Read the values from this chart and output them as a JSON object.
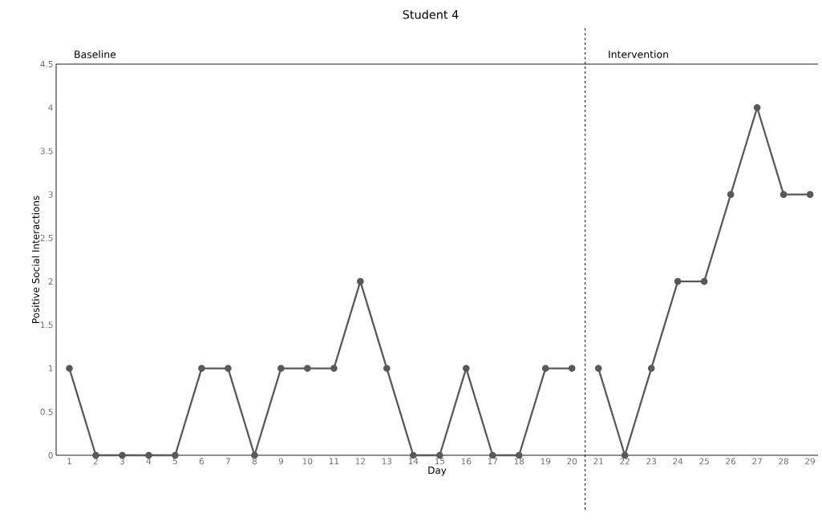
{
  "chart_data": {
    "type": "line",
    "title": "Student 4",
    "xlabel": "Day",
    "ylabel": "Positive Social Interactions",
    "series": [
      {
        "color": "#595959",
        "x": [
          1,
          2,
          3,
          4,
          5,
          6,
          7,
          8,
          9,
          10,
          11,
          12,
          13,
          14,
          15,
          16,
          17,
          18,
          19,
          20
        ],
        "values": [
          1,
          0,
          0,
          0,
          0,
          1,
          1,
          0,
          1,
          1,
          1,
          2,
          1,
          0,
          0,
          1,
          0,
          0,
          1,
          1
        ]
      },
      {
        "color": "#595959",
        "x": [
          21,
          22,
          23,
          24,
          25,
          26,
          27,
          28,
          29
        ],
        "values": [
          1,
          0,
          1,
          2,
          2,
          3,
          4,
          3,
          3
        ]
      }
    ],
    "xlim": [
      0.5,
      29.3
    ],
    "xticks": [
      1,
      2,
      3,
      4,
      5,
      6,
      7,
      8,
      9,
      10,
      11,
      12,
      13,
      14,
      15,
      16,
      17,
      18,
      19,
      20,
      21,
      22,
      23,
      24,
      25,
      26,
      27,
      28,
      29
    ],
    "ylim": [
      0,
      4.5
    ],
    "yticks": [
      0,
      0.5,
      1,
      1.5,
      2,
      2.5,
      3,
      3.5,
      4,
      4.5
    ],
    "ref_lines": [
      {
        "axis": "x",
        "value": 20.5,
        "color": "#000000",
        "line_style": "dashed"
      }
    ],
    "annotations": [
      "Baseline",
      "Intervention"
    ],
    "marker": "circle",
    "line_style": "solid",
    "grid": false
  }
}
